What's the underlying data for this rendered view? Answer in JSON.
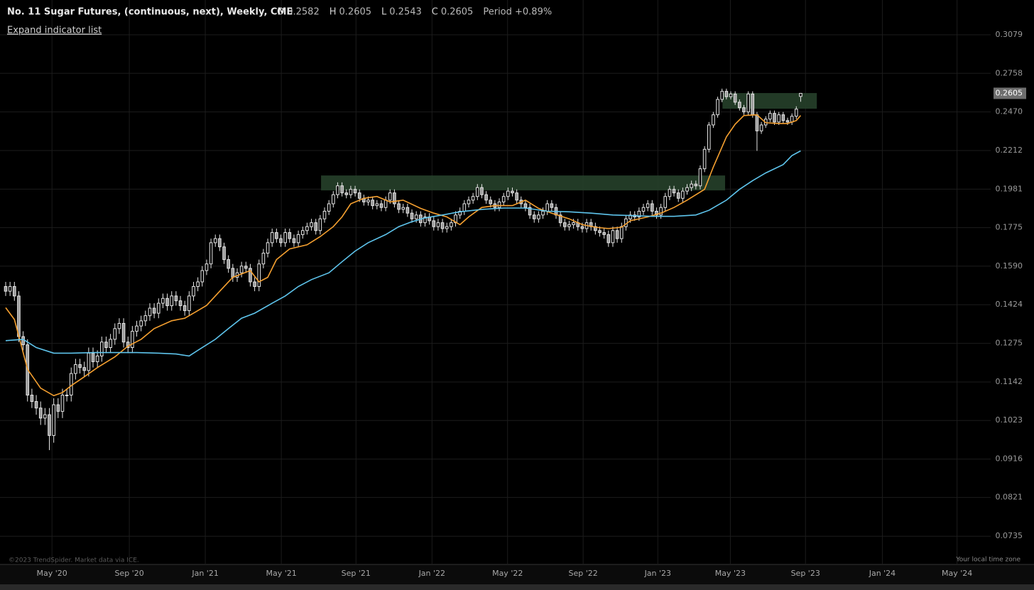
{
  "chart_data": {
    "type": "candlestick",
    "title": "No. 11 Sugar Futures, (continuous, next), Weekly, CME",
    "ohlc_labels": [
      "O",
      "H",
      "L",
      "C"
    ],
    "period": "Period +0.89%",
    "indicator_link": "Expand indicator list",
    "footer": "©2023 TrendSpider. Market data via ICE.",
    "timezone": "Your local time zone",
    "log_scale": true,
    "grid": true,
    "up_color": "#000000",
    "down_color": "#9a9a9a",
    "wick_color": "#e6e6e6",
    "last_price_color": "#6e6e6e",
    "zone_color": "#26402a",
    "ylim": [
      0.0678,
      0.3401
    ],
    "yticks": [
      0.3079,
      0.2758,
      {
        "value": 0.247,
        "label": "0.2470"
      },
      0.2212,
      0.1981,
      0.1775,
      {
        "value": 0.159,
        "label": "0.1590"
      },
      0.1424,
      0.1275,
      0.1142,
      0.1023,
      0.0916,
      0.0821,
      0.0735
    ],
    "xlim": [
      -1.3,
      225.5
    ],
    "xticks": [
      {
        "value": 10.6,
        "label": "May '20"
      },
      {
        "value": 28.3,
        "label": "Sep '20"
      },
      {
        "value": 45.7,
        "label": "Jan '21"
      },
      {
        "value": 63.1,
        "label": "May '21"
      },
      {
        "value": 80.2,
        "label": "Sep '21"
      },
      {
        "value": 97.6,
        "label": "Jan '22"
      },
      {
        "value": 114.9,
        "label": "May '22"
      },
      {
        "value": 132.2,
        "label": "Sep '22"
      },
      {
        "value": 149.3,
        "label": "Jan '23"
      },
      {
        "value": 165.9,
        "label": "May '23"
      },
      {
        "value": 183.1,
        "label": "Sep '23"
      },
      {
        "value": 200.7,
        "label": "Jan '24"
      },
      {
        "value": 217.8,
        "label": "May '24"
      }
    ],
    "zones": [
      {
        "x": [
          72.2,
          164.7
        ],
        "y": [
          0.1974,
          0.206
        ]
      },
      {
        "x": [
          164.1,
          185.7
        ],
        "y": [
          0.2493,
          0.2607
        ]
      }
    ],
    "open": [
      0.15,
      0.148,
      0.15,
      0.146,
      0.13,
      0.127,
      0.11,
      0.108,
      0.106,
      0.103,
      0.104,
      0.098,
      0.107,
      0.105,
      0.11,
      0.11,
      0.117,
      0.12,
      0.119,
      0.118,
      0.124,
      0.121,
      0.123,
      0.128,
      0.126,
      0.129,
      0.133,
      0.135,
      0.128,
      0.126,
      0.132,
      0.134,
      0.136,
      0.138,
      0.141,
      0.139,
      0.143,
      0.145,
      0.142,
      0.146,
      0.144,
      0.142,
      0.14,
      0.146,
      0.15,
      0.152,
      0.157,
      0.16,
      0.17,
      0.172,
      0.168,
      0.162,
      0.158,
      0.154,
      0.156,
      0.159,
      0.158,
      0.152,
      0.15,
      0.16,
      0.165,
      0.17,
      0.175,
      0.172,
      0.17,
      0.175,
      0.172,
      0.17,
      0.174,
      0.176,
      0.178,
      0.18,
      0.176,
      0.182,
      0.186,
      0.19,
      0.195,
      0.2,
      0.196,
      0.195,
      0.198,
      0.196,
      0.193,
      0.191,
      0.192,
      0.189,
      0.19,
      0.188,
      0.192,
      0.196,
      0.19,
      0.187,
      0.188,
      0.185,
      0.182,
      0.184,
      0.18,
      0.183,
      0.181,
      0.178,
      0.18,
      0.177,
      0.178,
      0.18,
      0.184,
      0.186,
      0.19,
      0.192,
      0.194,
      0.199,
      0.195,
      0.192,
      0.19,
      0.188,
      0.191,
      0.194,
      0.197,
      0.196,
      0.192,
      0.19,
      0.188,
      0.184,
      0.182,
      0.184,
      0.186,
      0.19,
      0.188,
      0.184,
      0.18,
      0.178,
      0.179,
      0.18,
      0.178,
      0.177,
      0.18,
      0.178,
      0.176,
      0.175,
      0.174,
      0.17,
      0.176,
      0.172,
      0.178,
      0.182,
      0.184,
      0.183,
      0.186,
      0.188,
      0.19,
      0.186,
      0.184,
      0.188,
      0.194,
      0.198,
      0.196,
      0.193,
      0.197,
      0.199,
      0.201,
      0.2,
      0.21,
      0.222,
      0.238,
      0.245,
      0.256,
      0.262,
      0.258,
      0.26,
      0.254,
      0.25,
      0.247,
      0.26,
      0.245,
      0.234,
      0.238,
      0.242,
      0.246,
      0.24,
      0.245,
      0.241,
      0.24,
      0.244,
      0.2582
    ],
    "high": [
      0.152,
      0.152,
      0.152,
      0.148,
      0.132,
      0.129,
      0.112,
      0.11,
      0.108,
      0.106,
      0.106,
      0.109,
      0.109,
      0.112,
      0.112,
      0.119,
      0.122,
      0.122,
      0.121,
      0.126,
      0.126,
      0.125,
      0.13,
      0.13,
      0.131,
      0.135,
      0.137,
      0.137,
      0.13,
      0.134,
      0.136,
      0.138,
      0.14,
      0.143,
      0.143,
      0.145,
      0.147,
      0.147,
      0.148,
      0.148,
      0.146,
      0.144,
      0.148,
      0.152,
      0.154,
      0.159,
      0.162,
      0.172,
      0.174,
      0.174,
      0.17,
      0.164,
      0.16,
      0.158,
      0.161,
      0.161,
      0.16,
      0.154,
      0.162,
      0.167,
      0.172,
      0.177,
      0.177,
      0.174,
      0.177,
      0.177,
      0.174,
      0.176,
      0.178,
      0.18,
      0.182,
      0.182,
      0.184,
      0.188,
      0.192,
      0.197,
      0.202,
      0.202,
      0.198,
      0.2,
      0.2,
      0.198,
      0.195,
      0.194,
      0.194,
      0.192,
      0.192,
      0.194,
      0.198,
      0.198,
      0.192,
      0.19,
      0.19,
      0.187,
      0.186,
      0.186,
      0.185,
      0.185,
      0.183,
      0.182,
      0.182,
      0.18,
      0.182,
      0.186,
      0.188,
      0.192,
      0.194,
      0.196,
      0.201,
      0.201,
      0.197,
      0.194,
      0.192,
      0.193,
      0.196,
      0.199,
      0.199,
      0.198,
      0.194,
      0.192,
      0.19,
      0.186,
      0.186,
      0.188,
      0.192,
      0.192,
      0.19,
      0.186,
      0.182,
      0.181,
      0.182,
      0.182,
      0.18,
      0.182,
      0.182,
      0.18,
      0.178,
      0.177,
      0.176,
      0.178,
      0.178,
      0.18,
      0.184,
      0.186,
      0.186,
      0.188,
      0.19,
      0.192,
      0.192,
      0.188,
      0.19,
      0.196,
      0.2,
      0.2,
      0.198,
      0.199,
      0.201,
      0.203,
      0.203,
      0.212,
      0.224,
      0.24,
      0.247,
      0.258,
      0.264,
      0.264,
      0.262,
      0.262,
      0.256,
      0.252,
      0.262,
      0.262,
      0.247,
      0.24,
      0.244,
      0.248,
      0.248,
      0.247,
      0.247,
      0.243,
      0.246,
      0.251,
      0.2605
    ],
    "low": [
      0.146,
      0.146,
      0.144,
      0.128,
      0.125,
      0.108,
      0.106,
      0.104,
      0.101,
      0.101,
      0.094,
      0.096,
      0.103,
      0.103,
      0.108,
      0.108,
      0.115,
      0.117,
      0.116,
      0.116,
      0.119,
      0.119,
      0.121,
      0.124,
      0.124,
      0.127,
      0.131,
      0.126,
      0.124,
      0.124,
      0.13,
      0.132,
      0.134,
      0.136,
      0.137,
      0.137,
      0.141,
      0.14,
      0.14,
      0.142,
      0.14,
      0.138,
      0.138,
      0.144,
      0.148,
      0.15,
      0.155,
      0.158,
      0.168,
      0.166,
      0.16,
      0.156,
      0.152,
      0.152,
      0.154,
      0.156,
      0.15,
      0.148,
      0.148,
      0.158,
      0.163,
      0.168,
      0.17,
      0.168,
      0.168,
      0.17,
      0.168,
      0.168,
      0.172,
      0.174,
      0.176,
      0.174,
      0.174,
      0.18,
      0.184,
      0.188,
      0.193,
      0.194,
      0.193,
      0.193,
      0.194,
      0.191,
      0.189,
      0.189,
      0.187,
      0.187,
      0.186,
      0.186,
      0.19,
      0.188,
      0.185,
      0.185,
      0.183,
      0.18,
      0.18,
      0.178,
      0.178,
      0.179,
      0.176,
      0.176,
      0.175,
      0.175,
      0.176,
      0.178,
      0.182,
      0.184,
      0.188,
      0.19,
      0.192,
      0.193,
      0.19,
      0.188,
      0.186,
      0.186,
      0.189,
      0.192,
      0.194,
      0.19,
      0.188,
      0.186,
      0.182,
      0.18,
      0.18,
      0.182,
      0.184,
      0.186,
      0.182,
      0.178,
      0.176,
      0.176,
      0.177,
      0.176,
      0.175,
      0.175,
      0.176,
      0.174,
      0.173,
      0.172,
      0.168,
      0.168,
      0.17,
      0.17,
      0.176,
      0.18,
      0.181,
      0.181,
      0.184,
      0.186,
      0.184,
      0.182,
      0.182,
      0.186,
      0.192,
      0.194,
      0.191,
      0.191,
      0.195,
      0.197,
      0.198,
      0.198,
      0.208,
      0.22,
      0.236,
      0.243,
      0.254,
      0.256,
      0.256,
      0.252,
      0.248,
      0.245,
      0.245,
      0.243,
      0.221,
      0.232,
      0.236,
      0.24,
      0.238,
      0.238,
      0.239,
      0.238,
      0.238,
      0.242,
      0.2543
    ],
    "close": [
      0.148,
      0.15,
      0.146,
      0.13,
      0.127,
      0.11,
      0.108,
      0.106,
      0.103,
      0.104,
      0.098,
      0.107,
      0.105,
      0.11,
      0.11,
      0.117,
      0.12,
      0.119,
      0.118,
      0.124,
      0.121,
      0.123,
      0.128,
      0.126,
      0.129,
      0.133,
      0.135,
      0.128,
      0.126,
      0.132,
      0.134,
      0.136,
      0.138,
      0.141,
      0.139,
      0.143,
      0.145,
      0.142,
      0.146,
      0.144,
      0.142,
      0.14,
      0.146,
      0.15,
      0.152,
      0.157,
      0.16,
      0.17,
      0.172,
      0.168,
      0.162,
      0.158,
      0.154,
      0.156,
      0.159,
      0.158,
      0.152,
      0.15,
      0.16,
      0.165,
      0.17,
      0.175,
      0.172,
      0.17,
      0.175,
      0.172,
      0.17,
      0.174,
      0.176,
      0.178,
      0.18,
      0.176,
      0.182,
      0.186,
      0.19,
      0.195,
      0.2,
      0.196,
      0.195,
      0.198,
      0.196,
      0.193,
      0.191,
      0.192,
      0.189,
      0.19,
      0.188,
      0.192,
      0.196,
      0.19,
      0.187,
      0.188,
      0.185,
      0.182,
      0.184,
      0.18,
      0.183,
      0.181,
      0.178,
      0.18,
      0.177,
      0.178,
      0.18,
      0.184,
      0.186,
      0.19,
      0.192,
      0.194,
      0.199,
      0.195,
      0.192,
      0.19,
      0.188,
      0.191,
      0.194,
      0.197,
      0.196,
      0.192,
      0.19,
      0.188,
      0.184,
      0.182,
      0.184,
      0.186,
      0.19,
      0.188,
      0.184,
      0.18,
      0.178,
      0.179,
      0.18,
      0.178,
      0.177,
      0.18,
      0.178,
      0.176,
      0.175,
      0.174,
      0.17,
      0.176,
      0.172,
      0.178,
      0.182,
      0.184,
      0.183,
      0.186,
      0.188,
      0.19,
      0.186,
      0.184,
      0.188,
      0.194,
      0.198,
      0.196,
      0.193,
      0.197,
      0.199,
      0.201,
      0.2,
      0.21,
      0.222,
      0.238,
      0.245,
      0.256,
      0.262,
      0.258,
      0.26,
      0.254,
      0.25,
      0.247,
      0.26,
      0.245,
      0.234,
      0.238,
      0.242,
      0.246,
      0.24,
      0.245,
      0.241,
      0.24,
      0.244,
      0.249,
      0.2605
    ],
    "series": [
      {
        "color": "#f5a030",
        "x": [
          0,
          2,
          5,
          8,
          11,
          13,
          15,
          18,
          21,
          25,
          28,
          31,
          34,
          38,
          41,
          43,
          46,
          49,
          52,
          56,
          58,
          60,
          62,
          65,
          69,
          72,
          75,
          77,
          79,
          82,
          85,
          88,
          91,
          95,
          98,
          101,
          104,
          106,
          109,
          112,
          116,
          119,
          122,
          125,
          129,
          132,
          135,
          138,
          141,
          143,
          147,
          150,
          153,
          156,
          160,
          162,
          165,
          167,
          169,
          172,
          174,
          177,
          179,
          181,
          182
        ],
        "values": [
          0.1412,
          0.1365,
          0.1184,
          0.1122,
          0.1098,
          0.1108,
          0.113,
          0.1159,
          0.119,
          0.1227,
          0.1265,
          0.129,
          0.133,
          0.136,
          0.137,
          0.139,
          0.1421,
          0.148,
          0.154,
          0.157,
          0.152,
          0.154,
          0.162,
          0.167,
          0.169,
          0.173,
          0.178,
          0.183,
          0.19,
          0.193,
          0.194,
          0.191,
          0.192,
          0.1875,
          0.185,
          0.183,
          0.179,
          0.183,
          0.188,
          0.189,
          0.189,
          0.192,
          0.1875,
          0.185,
          0.182,
          0.179,
          0.1777,
          0.177,
          0.1777,
          0.181,
          0.183,
          0.185,
          0.188,
          0.192,
          0.198,
          0.211,
          0.23,
          0.2385,
          0.2445,
          0.245,
          0.2395,
          0.239,
          0.239,
          0.241,
          0.2445
        ]
      },
      {
        "color": "#5ec4ec",
        "x": [
          0,
          4,
          7,
          11,
          15,
          20,
          25,
          30,
          35,
          39,
          42,
          44,
          48,
          51,
          54,
          57,
          61,
          64,
          67,
          70,
          74,
          77,
          80,
          83,
          87,
          90,
          93,
          96,
          100,
          104,
          109,
          114,
          119,
          124,
          129,
          134,
          139,
          143,
          148,
          153,
          158,
          161,
          165,
          168,
          171,
          174,
          178,
          180,
          182
        ],
        "values": [
          0.1285,
          0.129,
          0.126,
          0.124,
          0.124,
          0.1242,
          0.1242,
          0.1242,
          0.124,
          0.1237,
          0.123,
          0.125,
          0.129,
          0.133,
          0.137,
          0.139,
          0.143,
          0.146,
          0.15,
          0.153,
          0.156,
          0.161,
          0.166,
          0.17,
          0.174,
          0.178,
          0.1805,
          0.1825,
          0.184,
          0.1857,
          0.187,
          0.1877,
          0.1877,
          0.186,
          0.1857,
          0.185,
          0.184,
          0.1837,
          0.1833,
          0.1833,
          0.184,
          0.1865,
          0.192,
          0.198,
          0.203,
          0.2075,
          0.2125,
          0.218,
          0.221
        ]
      }
    ]
  }
}
